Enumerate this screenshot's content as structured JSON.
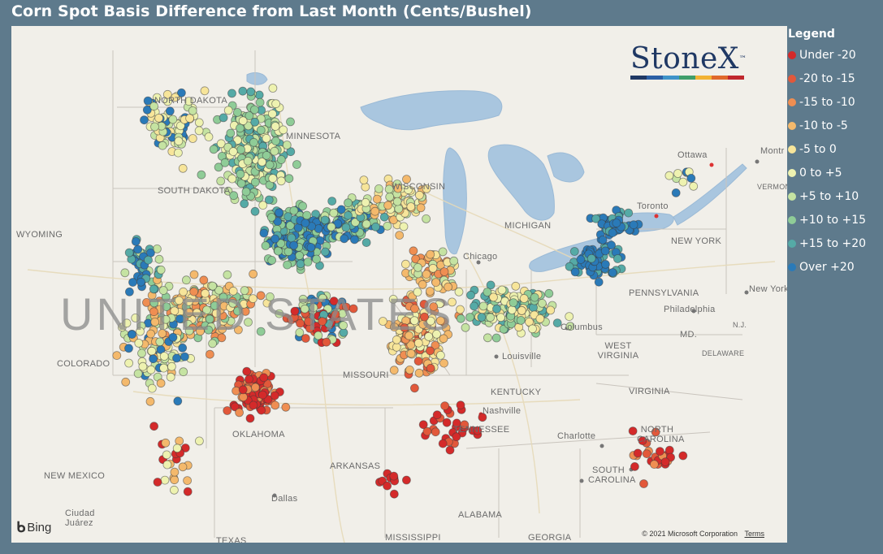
{
  "title": "Corn Spot Basis Difference from Last Month (Cents/Bushel)",
  "legend": {
    "title": "Legend",
    "items": [
      {
        "label": "Under -20",
        "color": "#d42a2a"
      },
      {
        "label": "-20 to -15",
        "color": "#e2583a"
      },
      {
        "label": "-15 to -10",
        "color": "#ef8e52"
      },
      {
        "label": "-10 to -5",
        "color": "#f4b96c"
      },
      {
        "label": "-5 to 0",
        "color": "#f7e59a"
      },
      {
        "label": "0 to +5",
        "color": "#eef2b0"
      },
      {
        "label": "+5 to +10",
        "color": "#c5e3a2"
      },
      {
        "label": "+10 to +15",
        "color": "#8fcc97"
      },
      {
        "label": "+15 to +20",
        "color": "#55aaa6"
      },
      {
        "label": "Over +20",
        "color": "#2a7ab8"
      }
    ]
  },
  "map": {
    "provider": "Bing",
    "copyright": "© 2021 Microsoft Corporation",
    "terms": "Terms",
    "labels": [
      {
        "id": "north-dakota",
        "text": "NORTH DAKOTA"
      },
      {
        "id": "south-dakota",
        "text": "SOUTH DAKOTA"
      },
      {
        "id": "minnesota",
        "text": "MINNESOTA"
      },
      {
        "id": "wisconsin",
        "text": "WISCONSIN"
      },
      {
        "id": "wyoming",
        "text": "WYOMING"
      },
      {
        "id": "colorado",
        "text": "COLORADO"
      },
      {
        "id": "new-mexico",
        "text": "NEW MEXICO"
      },
      {
        "id": "oklahoma",
        "text": "OKLAHOMA"
      },
      {
        "id": "arkansas",
        "text": "ARKANSAS"
      },
      {
        "id": "texas",
        "text": "TEXAS"
      },
      {
        "id": "missouri",
        "text": "MISSOURI"
      },
      {
        "id": "kentucky",
        "text": "KENTUCKY"
      },
      {
        "id": "tennessee",
        "text": "TENNESSEE"
      },
      {
        "id": "alabama",
        "text": "ALABAMA"
      },
      {
        "id": "mississippi",
        "text": "MISSISSIPPI"
      },
      {
        "id": "georgia",
        "text": "GEORGIA"
      },
      {
        "id": "west-virginia",
        "text": "WEST VIRGINIA"
      },
      {
        "id": "virginia",
        "text": "VIRGINIA"
      },
      {
        "id": "north-carolina",
        "text": "NORTH CAROLINA"
      },
      {
        "id": "south-carolina",
        "text": "SOUTH CAROLINA"
      },
      {
        "id": "pennsylvania",
        "text": "PENNSYLVANIA"
      },
      {
        "id": "new-york",
        "text": "NEW YORK"
      },
      {
        "id": "michigan",
        "text": "MICHIGAN"
      },
      {
        "id": "vermont",
        "text": "VERMONT"
      },
      {
        "id": "md",
        "text": "MD."
      },
      {
        "id": "nj",
        "text": "N.J."
      },
      {
        "id": "delaware",
        "text": "DELAWARE"
      },
      {
        "id": "chicago",
        "text": "Chicago"
      },
      {
        "id": "toronto",
        "text": "Toronto"
      },
      {
        "id": "ottawa",
        "text": "Ottawa"
      },
      {
        "id": "montreal",
        "text": "Montr"
      },
      {
        "id": "columbus",
        "text": "Columbus"
      },
      {
        "id": "louisville",
        "text": "Louisville"
      },
      {
        "id": "nashville",
        "text": "Nashville"
      },
      {
        "id": "charlotte",
        "text": "Charlotte"
      },
      {
        "id": "philadelphia",
        "text": "Philadelphia"
      },
      {
        "id": "new-york-city",
        "text": "New York"
      },
      {
        "id": "dallas",
        "text": "Dallas"
      },
      {
        "id": "ciudad-juarez",
        "text": "Ciudad\nJuárez"
      },
      {
        "id": "united-states",
        "text": "UNITED STATES"
      }
    ]
  },
  "logo": {
    "text": "StoneX",
    "tm": "™",
    "bar_colors": [
      "#1f3864",
      "#2b5fa5",
      "#3f93c9",
      "#3f9e6a",
      "#f2b233",
      "#e0682b",
      "#c0272d"
    ]
  }
}
